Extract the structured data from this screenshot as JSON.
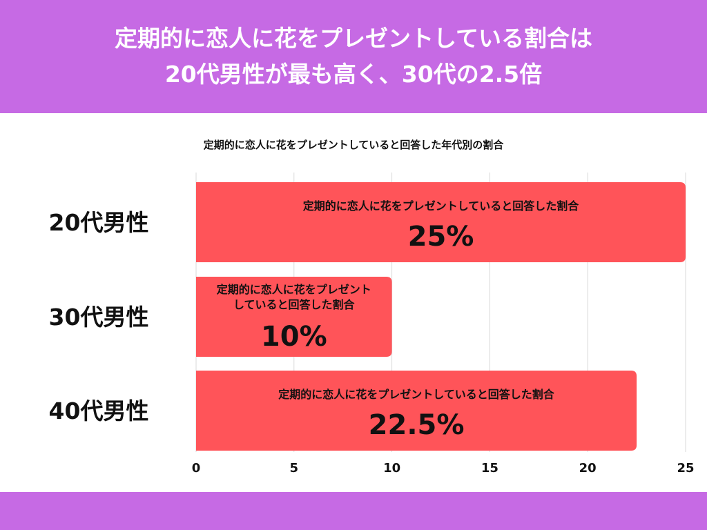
{
  "header": {
    "title_line1": "定期的に恋人に花をプレゼントしている割合は",
    "title_line2": "20代男性が最も高く、30代の2.5倍"
  },
  "colors": {
    "header_bg": "#c66ae4",
    "bar": "#ff5459",
    "grid": "#d9d9d9"
  },
  "chart_data": {
    "type": "bar",
    "orientation": "horizontal",
    "title": "定期的に恋人に花をプレゼントしていると回答した年代別の割合",
    "categories": [
      "20代男性",
      "30代男性",
      "40代男性"
    ],
    "values": [
      25,
      10,
      22.5
    ],
    "value_labels": [
      "25%",
      "10%",
      "22.5%"
    ],
    "bar_captions": [
      [
        "定期的に恋人に花をプレゼントしていると回答した割合"
      ],
      [
        "定期的に恋人に花をプレゼント",
        "していると回答した割合"
      ],
      [
        "定期的に恋人に花をプレゼントしていると回答した割合"
      ]
    ],
    "xlim": [
      0,
      25
    ],
    "xticks": [
      0,
      5,
      10,
      15,
      20,
      25
    ],
    "xlabel": "",
    "ylabel": "",
    "grid": true
  }
}
